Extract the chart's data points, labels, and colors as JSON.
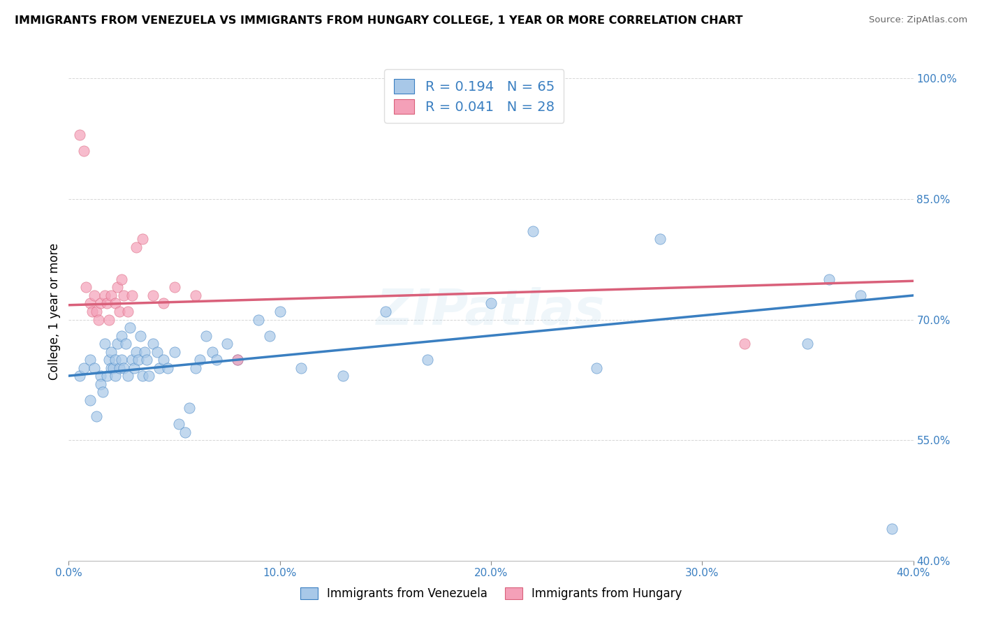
{
  "title": "IMMIGRANTS FROM VENEZUELA VS IMMIGRANTS FROM HUNGARY COLLEGE, 1 YEAR OR MORE CORRELATION CHART",
  "source": "Source: ZipAtlas.com",
  "ylabel": "College, 1 year or more",
  "xlabel": "",
  "xlim": [
    0.0,
    0.4
  ],
  "ylim": [
    0.4,
    1.02
  ],
  "xticks": [
    0.0,
    0.1,
    0.2,
    0.3,
    0.4
  ],
  "yticks": [
    0.4,
    0.55,
    0.7,
    0.85,
    1.0
  ],
  "ytick_labels": [
    "40.0%",
    "55.0%",
    "70.0%",
    "85.0%",
    "100.0%"
  ],
  "xtick_labels": [
    "0.0%",
    "10.0%",
    "20.0%",
    "30.0%",
    "40.0%"
  ],
  "R_blue": 0.194,
  "N_blue": 65,
  "R_pink": 0.041,
  "N_pink": 28,
  "blue_color": "#a8c8e8",
  "pink_color": "#f4a0b8",
  "blue_line_color": "#3a7fc1",
  "pink_line_color": "#d9607a",
  "legend_blue_label": "Immigrants from Venezuela",
  "legend_pink_label": "Immigrants from Hungary",
  "watermark": "ZIPatlas",
  "blue_scatter_x": [
    0.005,
    0.007,
    0.01,
    0.01,
    0.012,
    0.013,
    0.015,
    0.015,
    0.016,
    0.017,
    0.018,
    0.019,
    0.02,
    0.02,
    0.021,
    0.022,
    0.022,
    0.023,
    0.024,
    0.025,
    0.025,
    0.026,
    0.027,
    0.028,
    0.029,
    0.03,
    0.031,
    0.032,
    0.033,
    0.034,
    0.035,
    0.036,
    0.037,
    0.038,
    0.04,
    0.042,
    0.043,
    0.045,
    0.047,
    0.05,
    0.052,
    0.055,
    0.057,
    0.06,
    0.062,
    0.065,
    0.068,
    0.07,
    0.075,
    0.08,
    0.09,
    0.095,
    0.1,
    0.11,
    0.13,
    0.15,
    0.17,
    0.2,
    0.22,
    0.25,
    0.28,
    0.35,
    0.36,
    0.375,
    0.39
  ],
  "blue_scatter_y": [
    0.63,
    0.64,
    0.65,
    0.6,
    0.64,
    0.58,
    0.63,
    0.62,
    0.61,
    0.67,
    0.63,
    0.65,
    0.64,
    0.66,
    0.64,
    0.63,
    0.65,
    0.67,
    0.64,
    0.68,
    0.65,
    0.64,
    0.67,
    0.63,
    0.69,
    0.65,
    0.64,
    0.66,
    0.65,
    0.68,
    0.63,
    0.66,
    0.65,
    0.63,
    0.67,
    0.66,
    0.64,
    0.65,
    0.64,
    0.66,
    0.57,
    0.56,
    0.59,
    0.64,
    0.65,
    0.68,
    0.66,
    0.65,
    0.67,
    0.65,
    0.7,
    0.68,
    0.71,
    0.64,
    0.63,
    0.71,
    0.65,
    0.72,
    0.81,
    0.64,
    0.8,
    0.67,
    0.75,
    0.73,
    0.44
  ],
  "pink_scatter_x": [
    0.005,
    0.007,
    0.008,
    0.01,
    0.011,
    0.012,
    0.013,
    0.014,
    0.015,
    0.017,
    0.018,
    0.019,
    0.02,
    0.022,
    0.023,
    0.024,
    0.025,
    0.026,
    0.028,
    0.03,
    0.032,
    0.035,
    0.04,
    0.045,
    0.05,
    0.06,
    0.08,
    0.32
  ],
  "pink_scatter_y": [
    0.93,
    0.91,
    0.74,
    0.72,
    0.71,
    0.73,
    0.71,
    0.7,
    0.72,
    0.73,
    0.72,
    0.7,
    0.73,
    0.72,
    0.74,
    0.71,
    0.75,
    0.73,
    0.71,
    0.73,
    0.79,
    0.8,
    0.73,
    0.72,
    0.74,
    0.73,
    0.65,
    0.67
  ],
  "blue_line_x0": 0.0,
  "blue_line_y0": 0.63,
  "blue_line_x1": 0.4,
  "blue_line_y1": 0.73,
  "pink_line_x0": 0.0,
  "pink_line_y0": 0.718,
  "pink_line_x1": 0.4,
  "pink_line_y1": 0.748
}
